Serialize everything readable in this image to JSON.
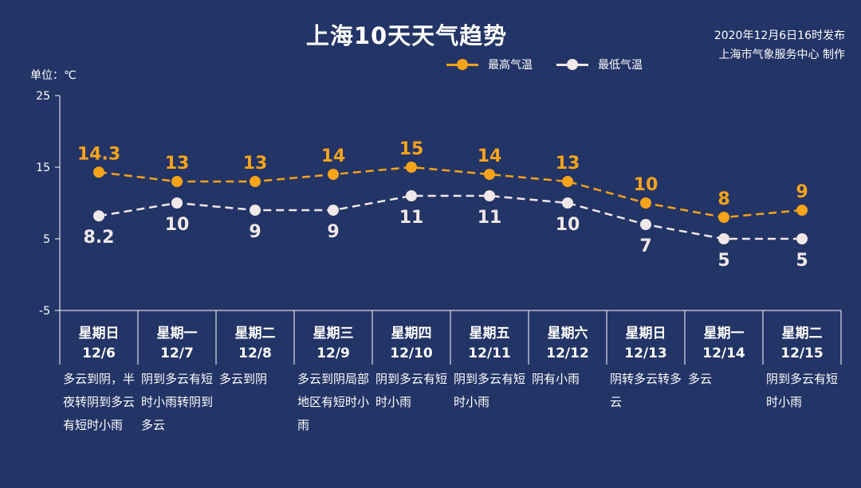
{
  "title": "上海10天天气趋势",
  "publish": {
    "time": "2020年12月6日16时发布",
    "org": "上海市气象服务中心 制作"
  },
  "legend": {
    "high": "最高气温",
    "low": "最低气温"
  },
  "colors": {
    "background": "#233466",
    "high": "#f5a31a",
    "low": "#f0e8e8",
    "axis": "#ffffff"
  },
  "days": [
    {
      "weekday": "星期日",
      "date": "12/6",
      "desc": "多云到阴，半夜转阴到多云有短时小雨"
    },
    {
      "weekday": "星期一",
      "date": "12/7",
      "desc": "阴到多云有短时小雨转阴到多云"
    },
    {
      "weekday": "星期二",
      "date": "12/8",
      "desc": "多云到阴"
    },
    {
      "weekday": "星期三",
      "date": "12/9",
      "desc": "多云到阴局部地区有短时小雨"
    },
    {
      "weekday": "星期四",
      "date": "12/10",
      "desc": "阴到多云有短时小雨"
    },
    {
      "weekday": "星期五",
      "date": "12/11",
      "desc": "阴到多云有短时小雨"
    },
    {
      "weekday": "星期六",
      "date": "12/12",
      "desc": "阴有小雨"
    },
    {
      "weekday": "星期日",
      "date": "12/13",
      "desc": "阴转多云转多云"
    },
    {
      "weekday": "星期一",
      "date": "12/14",
      "desc": "多云"
    },
    {
      "weekday": "星期二",
      "date": "12/15",
      "desc": "阴到多云有短时小雨"
    }
  ],
  "chart_data": {
    "type": "line",
    "title": "上海10天天气趋势",
    "ylabel": "单位：℃",
    "ylim": [
      -5,
      25
    ],
    "yticks": [
      25,
      15,
      5,
      -5
    ],
    "categories": [
      "12/6",
      "12/7",
      "12/8",
      "12/9",
      "12/10",
      "12/11",
      "12/12",
      "12/13",
      "12/14",
      "12/15"
    ],
    "series": [
      {
        "name": "最高气温",
        "values": [
          14.3,
          13,
          13,
          14,
          15,
          14,
          13,
          10,
          8,
          9
        ]
      },
      {
        "name": "最低气温",
        "values": [
          8.2,
          10,
          9,
          9,
          11,
          11,
          10,
          7,
          5,
          5
        ]
      }
    ],
    "grid": false,
    "legend_position": "top-center"
  }
}
